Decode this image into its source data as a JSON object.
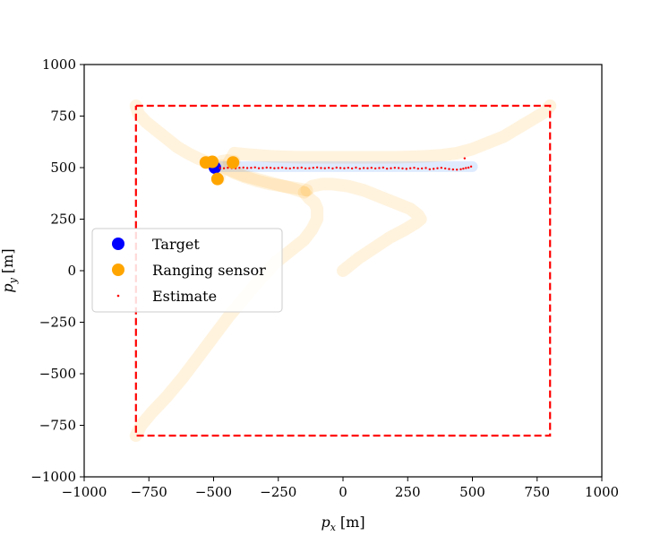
{
  "chart_data": {
    "type": "scatter",
    "xlabel_main": "p",
    "xlabel_sub": "x",
    "xlabel_unit": "[m]",
    "ylabel_main": "p",
    "ylabel_sub": "y",
    "ylabel_unit": "[m]",
    "xlim": [
      -1000,
      1000
    ],
    "ylim": [
      -1000,
      1000
    ],
    "xticks": [
      -1000,
      -750,
      -500,
      -250,
      0,
      250,
      500,
      750,
      1000
    ],
    "yticks": [
      -1000,
      -750,
      -500,
      -250,
      0,
      250,
      500,
      750,
      1000
    ],
    "xtick_labels": [
      "−1000",
      "−750",
      "−500",
      "−250",
      "0",
      "250",
      "500",
      "750",
      "1000"
    ],
    "ytick_labels": [
      "−1000",
      "−750",
      "−500",
      "−250",
      "0",
      "250",
      "500",
      "750",
      "1000"
    ],
    "grid": false,
    "legend_position": "center-left",
    "legend": [
      {
        "label": "Target",
        "marker": "circle",
        "color": "#0000ff"
      },
      {
        "label": "Ranging sensor",
        "marker": "circle",
        "color": "#ffa500"
      },
      {
        "label": "Estimate",
        "marker": "dot",
        "color": "#ff0000"
      }
    ],
    "boundary": {
      "color": "#ff0000",
      "style": "dashed",
      "x": [
        -800,
        800,
        800,
        -800,
        -800
      ],
      "y": [
        800,
        800,
        -800,
        -800,
        800
      ]
    },
    "sensor_trails": {
      "color": "#ffa500",
      "opacity": 0.13,
      "paths": [
        {
          "x": [
            -800,
            -790,
            -760,
            -720,
            -680,
            -640,
            -600,
            -560,
            -530,
            -510,
            -500
          ],
          "y": [
            800,
            760,
            720,
            680,
            640,
            600,
            570,
            545,
            530,
            522,
            520
          ]
        },
        {
          "x": [
            800,
            780,
            740,
            700,
            660,
            620,
            560,
            500,
            440,
            380,
            320,
            260,
            200,
            140,
            80,
            20,
            -40,
            -100,
            -160,
            -220,
            -280,
            -330,
            -380,
            -420,
            -440
          ],
          "y": [
            800,
            770,
            740,
            710,
            680,
            650,
            620,
            590,
            570,
            560,
            555,
            552,
            550,
            550,
            550,
            550,
            550,
            550,
            550,
            552,
            555,
            560,
            565,
            570,
            527
          ]
        },
        {
          "x": [
            -800,
            -780,
            -740,
            -680,
            -620,
            -560,
            -500,
            -440,
            -380,
            -320,
            -260,
            -200,
            -150,
            -120,
            -100,
            -100,
            -110,
            -130,
            -150
          ],
          "y": [
            -800,
            -750,
            -690,
            -610,
            -520,
            -420,
            -320,
            -220,
            -130,
            -40,
            40,
            100,
            150,
            200,
            250,
            300,
            330,
            350,
            380
          ]
        },
        {
          "x": [
            -150,
            -200,
            -260,
            -320,
            -380,
            -440,
            -480,
            -470,
            -450,
            -420
          ],
          "y": [
            380,
            400,
            420,
            440,
            460,
            490,
            510,
            530,
            535,
            530
          ]
        },
        {
          "x": [
            0,
            20,
            60,
            120,
            180,
            240,
            280,
            300,
            290,
            260,
            200,
            140,
            80,
            20,
            -40,
            -80,
            -120,
            -140
          ],
          "y": [
            0,
            20,
            60,
            110,
            160,
            200,
            230,
            250,
            270,
            300,
            330,
            360,
            390,
            410,
            420,
            420,
            410,
            390
          ]
        },
        {
          "x": [
            -140,
            -180,
            -230,
            -280,
            -330,
            -380,
            -420,
            -450,
            -470,
            -480
          ],
          "y": [
            390,
            400,
            410,
            420,
            435,
            455,
            475,
            495,
            510,
            445
          ]
        }
      ]
    },
    "target_trail": {
      "color": "#1f77ff",
      "opacity": 0.15,
      "x": [
        -500,
        -400,
        -300,
        -200,
        -100,
        0,
        100,
        200,
        300,
        400,
        500
      ],
      "y": [
        505,
        505,
        505,
        505,
        505,
        505,
        505,
        505,
        505,
        505,
        505
      ]
    },
    "target": {
      "x": -495,
      "y": 500
    },
    "sensors": [
      {
        "x": -530,
        "y": 525
      },
      {
        "x": -505,
        "y": 528
      },
      {
        "x": -425,
        "y": 525
      },
      {
        "x": -485,
        "y": 445
      }
    ],
    "estimate": {
      "x": [
        -475,
        -460,
        -445,
        -430,
        -415,
        -400,
        -385,
        -370,
        -355,
        -340,
        -325,
        -310,
        -295,
        -280,
        -265,
        -250,
        -235,
        -220,
        -205,
        -190,
        -175,
        -160,
        -145,
        -130,
        -115,
        -100,
        -85,
        -70,
        -55,
        -40,
        -25,
        -10,
        5,
        20,
        35,
        50,
        65,
        80,
        95,
        110,
        125,
        140,
        155,
        170,
        185,
        200,
        215,
        230,
        245,
        260,
        275,
        290,
        305,
        320,
        335,
        350,
        365,
        380,
        395,
        410,
        425,
        440,
        455,
        465,
        475,
        485,
        495,
        470
      ],
      "y": [
        498,
        497,
        499,
        498,
        497,
        499,
        500,
        498,
        499,
        501,
        497,
        498,
        500,
        499,
        497,
        498,
        500,
        497,
        496,
        499,
        498,
        500,
        496,
        497,
        499,
        501,
        498,
        497,
        499,
        496,
        500,
        498,
        497,
        499,
        496,
        500,
        495,
        498,
        497,
        499,
        496,
        498,
        500,
        495,
        497,
        499,
        498,
        496,
        494,
        497,
        499,
        495,
        496,
        498,
        492,
        494,
        497,
        499,
        496,
        493,
        491,
        490,
        492,
        495,
        498,
        500,
        505,
        545
      ]
    }
  }
}
